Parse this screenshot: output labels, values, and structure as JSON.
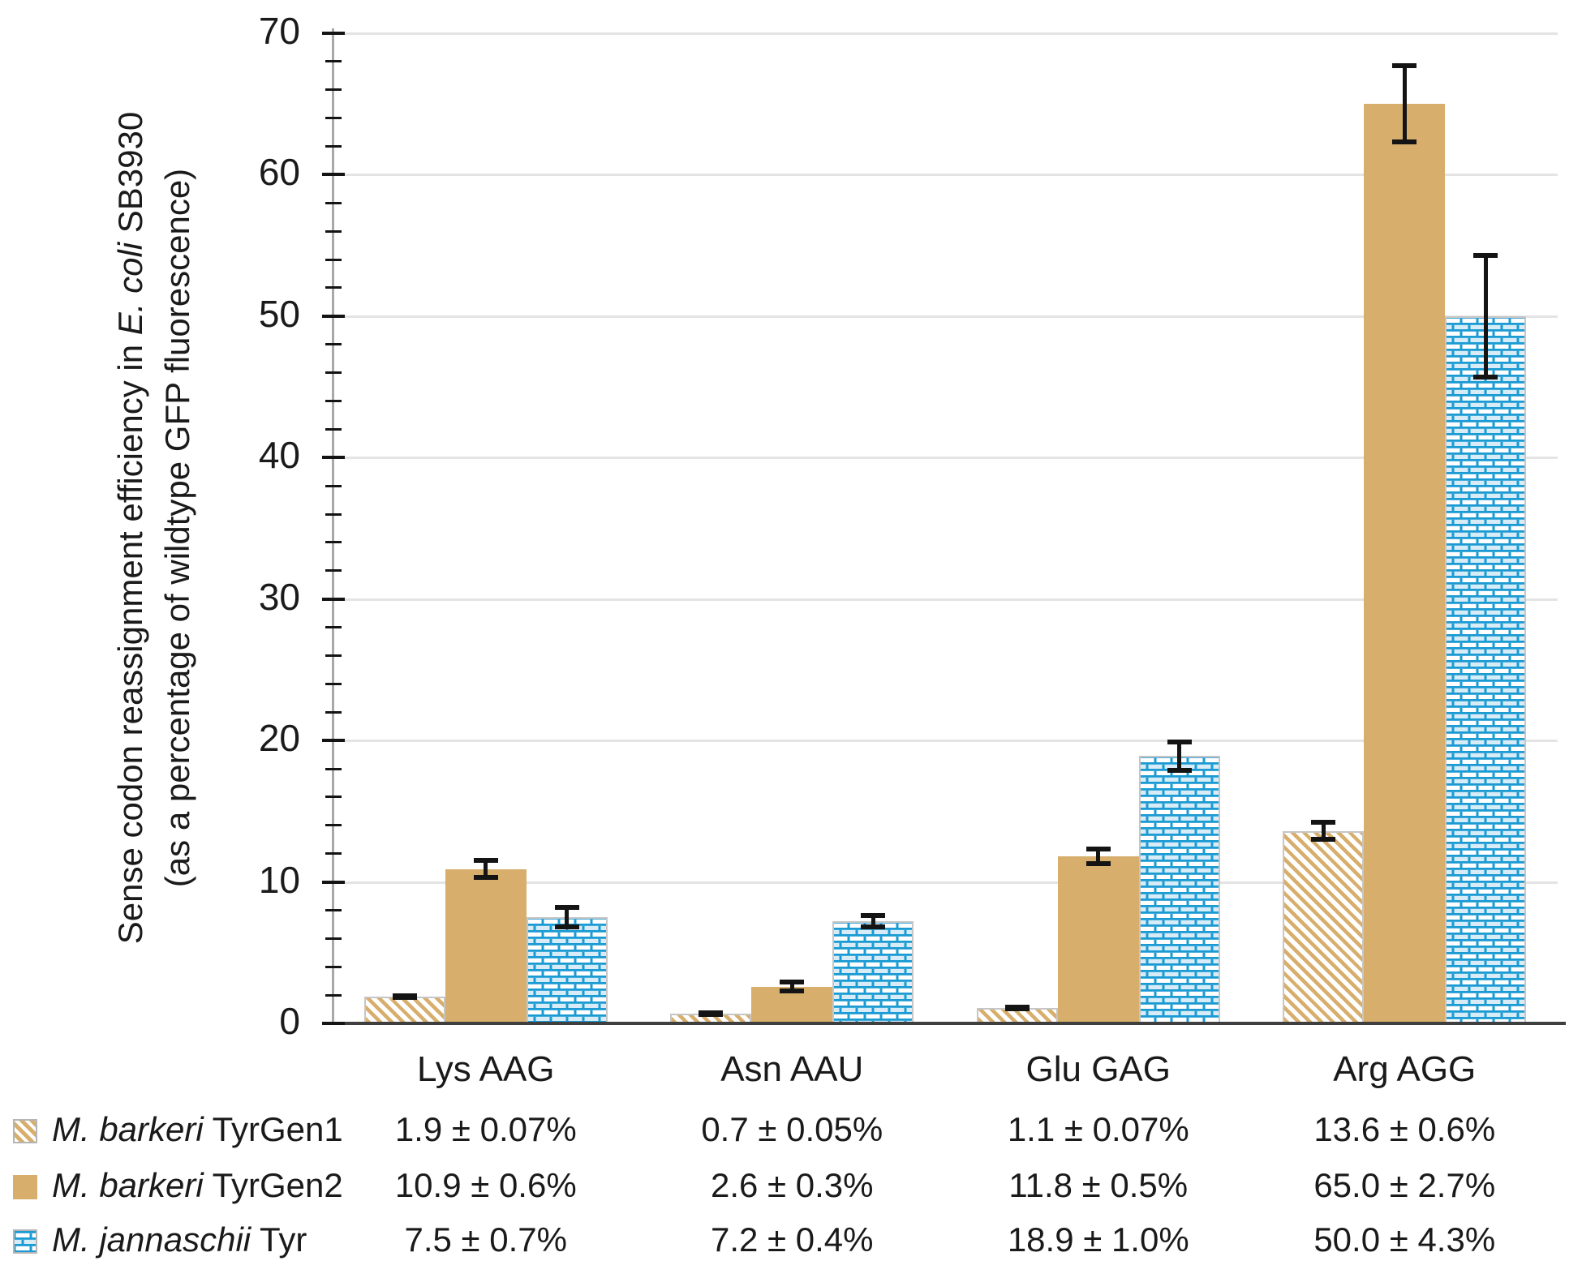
{
  "chart_data": {
    "type": "bar",
    "title": "",
    "y_axis": {
      "title_pre": "Sense codon reassignment efficiency in ",
      "title_italic": "E. coli",
      "title_post": " SB3930",
      "title_line2": "(as a percentage of wildtype GFP fluorescence)",
      "min": 0,
      "max": 70,
      "major_tick_step": 10,
      "minor_tick_step": 2,
      "tick_labels": [
        "0",
        "10",
        "20",
        "30",
        "40",
        "50",
        "60",
        "70"
      ]
    },
    "categories": [
      "Lys AAG",
      "Asn AAU",
      "Glu GAG",
      "Arg AGG"
    ],
    "series": [
      {
        "name_italic": "M. barkeri",
        "name_rest": " TyrGen1",
        "pattern": "diagonal-stripes",
        "values": [
          1.9,
          0.7,
          1.1,
          13.6
        ],
        "errors": [
          0.07,
          0.05,
          0.07,
          0.6
        ],
        "value_labels": [
          "1.9 ± 0.07%",
          "0.7 ± 0.05%",
          "1.1 ± 0.07%",
          "13.6 ± 0.6%"
        ]
      },
      {
        "name_italic": "M. barkeri",
        "name_rest": " TyrGen2",
        "pattern": "solid",
        "values": [
          10.9,
          2.6,
          11.8,
          65.0
        ],
        "errors": [
          0.6,
          0.3,
          0.5,
          2.7
        ],
        "value_labels": [
          "10.9 ± 0.6%",
          "2.6 ± 0.3%",
          "11.8 ± 0.5%",
          "65.0 ± 2.7%"
        ]
      },
      {
        "name_italic": "M. jannaschii",
        "name_rest": " Tyr",
        "pattern": "brick",
        "values": [
          7.5,
          7.2,
          18.9,
          50.0
        ],
        "errors": [
          0.7,
          0.4,
          1.0,
          4.3
        ],
        "value_labels": [
          "7.5 ± 0.7%",
          "7.2 ± 0.4%",
          "18.9 ± 1.0%",
          "50.0 ± 4.3%"
        ]
      }
    ],
    "colors": {
      "tan": "#D7AE6C",
      "blue": "#1B9BD3",
      "brick_tint": "#D8ECF7",
      "gridline": "#E4E4E4",
      "axis_line": "#A8A8A8",
      "baseline": "#3F3F3F",
      "text": "#1A1A1A",
      "error_bar": "#141414"
    },
    "grid": true,
    "legend_position": "bottom-table"
  }
}
